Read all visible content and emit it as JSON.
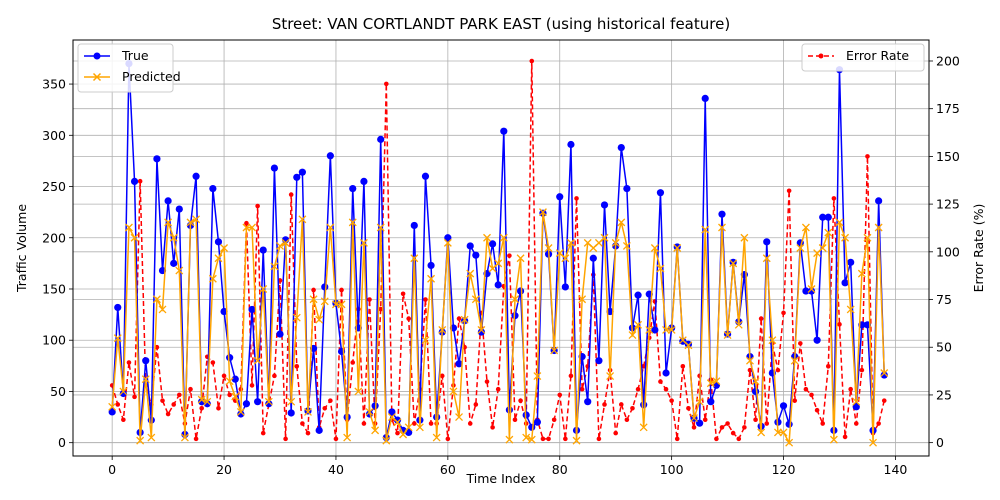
{
  "chart_data": {
    "type": "line",
    "title": "Street: VAN CORTLANDT PARK EAST (using historical feature)",
    "xlabel": "Time Index",
    "ylabel": "Traffic Volume",
    "ylabel_right": "Error Rate (%)",
    "xlim": [
      -7,
      146
    ],
    "ylim": [
      -13,
      393
    ],
    "ylim_right": [
      -7,
      211
    ],
    "x_ticks": [
      0,
      20,
      40,
      60,
      80,
      100,
      120,
      140
    ],
    "y_ticks": [
      0,
      50,
      100,
      150,
      200,
      250,
      300,
      350
    ],
    "y_ticks_right": [
      0,
      25,
      50,
      75,
      100,
      125,
      150,
      175,
      200
    ],
    "grid": true,
    "legend_left_placement": "upper-left",
    "legend_right_placement": "upper-right",
    "colors": {
      "true": "#0000ff",
      "predicted": "#ffa500",
      "error": "#ff0000",
      "grid": "#b0b0b0"
    },
    "series": [
      {
        "name": "True",
        "axis": "left",
        "marker": "o",
        "linestyle": "solid",
        "values": [
          30,
          132,
          48,
          370,
          255,
          10,
          80,
          22,
          277,
          168,
          236,
          175,
          228,
          8,
          212,
          260,
          40,
          38,
          248,
          196,
          128,
          83,
          62,
          28,
          38,
          130,
          40,
          188,
          38,
          268,
          106,
          198,
          29,
          259,
          264,
          31,
          92,
          12,
          152,
          280,
          136,
          89,
          25,
          248,
          112,
          255,
          28,
          36,
          296,
          5,
          30,
          22,
          12,
          10,
          212,
          22,
          260,
          173,
          25,
          108,
          200,
          112,
          77,
          119,
          192,
          183,
          108,
          165,
          194,
          154,
          304,
          32,
          124,
          148,
          27,
          15,
          20,
          224,
          184,
          90,
          240,
          152,
          291,
          12,
          84,
          40,
          180,
          80,
          232,
          128,
          192,
          288,
          248,
          112,
          144,
          37,
          145,
          110,
          244,
          68,
          112,
          191,
          99,
          96,
          24,
          19,
          336,
          40,
          56,
          223,
          106,
          176,
          118,
          164,
          84,
          50,
          16,
          196,
          68,
          20,
          36,
          18,
          84,
          195,
          148,
          148,
          100,
          220,
          220,
          12,
          364,
          156,
          176,
          35,
          115,
          115,
          12,
          236,
          66
        ]
      },
      {
        "name": "Predicted",
        "axis": "left",
        "marker": "x",
        "linestyle": "solid",
        "values": [
          35,
          102,
          50,
          210,
          200,
          2,
          62,
          5,
          140,
          130,
          215,
          200,
          168,
          5,
          215,
          218,
          42,
          40,
          160,
          180,
          190,
          60,
          45,
          30,
          210,
          210,
          80,
          150,
          40,
          172,
          192,
          195,
          40,
          122,
          218,
          30,
          140,
          120,
          138,
          210,
          135,
          135,
          5,
          215,
          50,
          195,
          30,
          12,
          210,
          2,
          25,
          20,
          8,
          15,
          180,
          15,
          100,
          160,
          5,
          110,
          195,
          50,
          25,
          120,
          165,
          140,
          110,
          200,
          170,
          175,
          200,
          3,
          140,
          180,
          5,
          3,
          65,
          225,
          190,
          90,
          185,
          180,
          195,
          2,
          140,
          195,
          190,
          195,
          200,
          65,
          195,
          215,
          192,
          105,
          115,
          15,
          110,
          190,
          170,
          110,
          110,
          190,
          100,
          95,
          24,
          40,
          208,
          58,
          60,
          210,
          105,
          175,
          115,
          200,
          80,
          60,
          10,
          180,
          100,
          10,
          10,
          0,
          80,
          190,
          210,
          150,
          185,
          190,
          205,
          3,
          215,
          200,
          130,
          40,
          165,
          200,
          0,
          210,
          68
        ]
      },
      {
        "name": "Error Rate",
        "axis": "right",
        "marker": "o",
        "linestyle": "dashed",
        "values": [
          30,
          20,
          12,
          42,
          24,
          137,
          30,
          20,
          50,
          22,
          15,
          20,
          25,
          10,
          28,
          2,
          18,
          45,
          42,
          18,
          35,
          25,
          22,
          28,
          115,
          30,
          124,
          5,
          20,
          35,
          85,
          2,
          130,
          40,
          10,
          5,
          80,
          8,
          18,
          22,
          2,
          80,
          12,
          42,
          70,
          10,
          75,
          10,
          70,
          188,
          12,
          5,
          78,
          65,
          10,
          28,
          75,
          10,
          10,
          35,
          2,
          30,
          65,
          50,
          10,
          20,
          68,
          32,
          8,
          28,
          82,
          98,
          12,
          22,
          10,
          200,
          12,
          2,
          2,
          12,
          25,
          2,
          35,
          128,
          28,
          40,
          88,
          2,
          20,
          38,
          5,
          20,
          12,
          18,
          28,
          40,
          55,
          74,
          32,
          28,
          22,
          2,
          40,
          18,
          8,
          35,
          12,
          33,
          2,
          8,
          10,
          5,
          2,
          8,
          38,
          12,
          65,
          10,
          52,
          38,
          68,
          132,
          22,
          52,
          28,
          25,
          17,
          10,
          40,
          128,
          62,
          3,
          28,
          10,
          38,
          150,
          5,
          10,
          22
        ]
      }
    ]
  }
}
